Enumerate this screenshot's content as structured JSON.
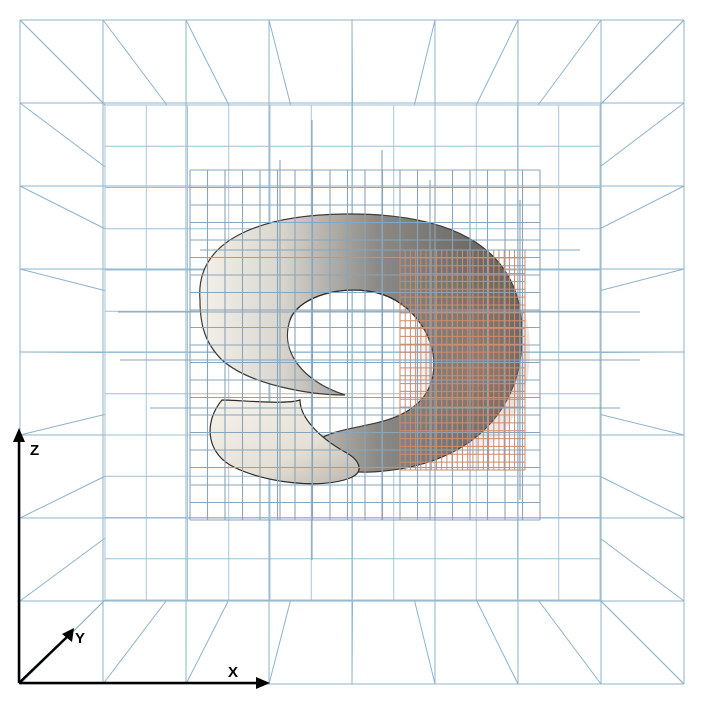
{
  "figure": {
    "axes": {
      "x_label": "X",
      "y_label": "Y",
      "z_label": "Z"
    },
    "colors": {
      "background": "#ffffff",
      "grid_outer": "#8fb3c9",
      "grid_refined": "#8aa4b8",
      "grid_inner_copper": "#c98d72",
      "surface_light": "#f3f0e8",
      "surface_shadow": "#6f6f6f",
      "axis": "#000000"
    }
  }
}
